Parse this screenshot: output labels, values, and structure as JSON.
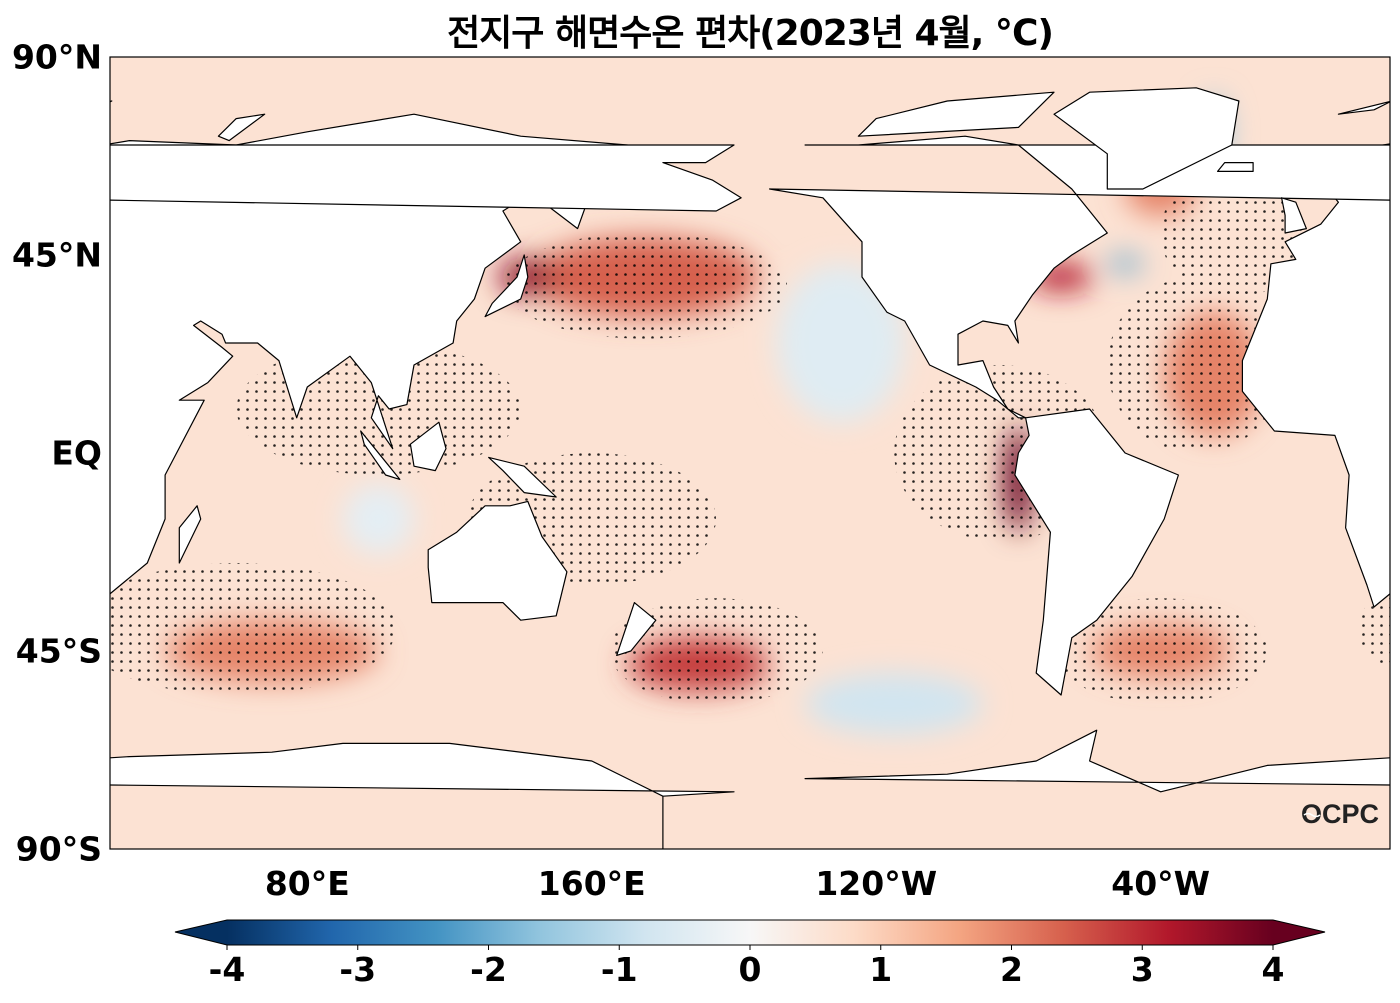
{
  "title": "전지구 해면수온 편차(2023년 4월, ℃)",
  "map": {
    "projection": "plate-carree",
    "lon_range": [
      24.5,
      384.5
    ],
    "lat_range": [
      -90,
      90
    ],
    "lat_ticks": [
      {
        "lat": 90,
        "label": "90°N"
      },
      {
        "lat": 45,
        "label": "45°N"
      },
      {
        "lat": 0,
        "label": "EQ"
      },
      {
        "lat": -45,
        "label": "45°S"
      },
      {
        "lat": -90,
        "label": "90°S"
      }
    ],
    "lon_ticks": [
      {
        "lon": 80,
        "label": "80°E"
      },
      {
        "lon": 160,
        "label": "160°E"
      },
      {
        "lon": 240,
        "label": "120°W"
      },
      {
        "lon": 320,
        "label": "40°W"
      }
    ],
    "land_color": "#ffffff",
    "coastline_color": "#000000",
    "ocean_background_anomaly": 0.6,
    "stippling": "significant anomaly",
    "anomaly_regions": [
      {
        "name": "NW Pacific",
        "lon": 175,
        "lat": 40,
        "value": 2.4
      },
      {
        "name": "Kuroshio",
        "lon": 142,
        "lat": 40,
        "value": 3.6
      },
      {
        "name": "Peru coast",
        "lon": -80,
        "lat": -6,
        "value": 4.0
      },
      {
        "name": "South Pacific",
        "lon": -170,
        "lat": -48,
        "value": 2.8
      },
      {
        "name": "NE Pacific",
        "lon": -130,
        "lat": 25,
        "value": -0.5
      },
      {
        "name": "SE Pacific",
        "lon": -115,
        "lat": -57,
        "value": -0.8
      },
      {
        "name": "Gulf Stream",
        "lon": -68,
        "lat": 40,
        "value": 3.2
      },
      {
        "name": "Gulf Stream cold",
        "lon": -50,
        "lat": 43,
        "value": -2.0
      },
      {
        "name": "Tropical N Atlantic",
        "lon": -25,
        "lat": 18,
        "value": 2.0
      },
      {
        "name": "South Indian",
        "lon": 70,
        "lat": -45,
        "value": 2.0
      },
      {
        "name": "SW Atlantic",
        "lon": -40,
        "lat": -45,
        "value": 2.0
      },
      {
        "name": "Eastern Indian",
        "lon": 100,
        "lat": -15,
        "value": -0.4
      },
      {
        "name": "Labrador",
        "lon": -40,
        "lat": 60,
        "value": 2.0
      },
      {
        "name": "Greenland coast",
        "lon": -25,
        "lat": 73,
        "value": -1.5
      }
    ]
  },
  "colorbar": {
    "colormap": "RdBu_r",
    "range": [
      -4,
      4
    ],
    "extend": "both",
    "ticks": [
      "-4",
      "-3",
      "-2",
      "-1",
      "0",
      "1",
      "2",
      "3",
      "4"
    ],
    "colors": [
      "#053061",
      "#2166ac",
      "#4393c3",
      "#92c5de",
      "#d1e5f0",
      "#f7f7f7",
      "#fddbc7",
      "#f4a582",
      "#d6604d",
      "#b2182b",
      "#67001f"
    ]
  },
  "logo": "OCPC"
}
